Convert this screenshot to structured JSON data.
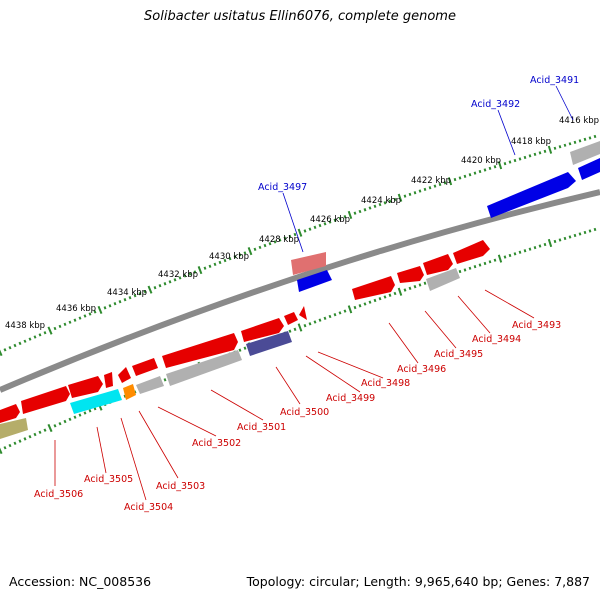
{
  "title": "Solibacter usitatus Ellin6076, complete genome",
  "footer": {
    "accession": "Accession: NC_008536",
    "stats": "Topology: circular; Length: 9,965,640 bp; Genes: 7,887"
  },
  "colors": {
    "backbone": "#8a8a8a",
    "tick_major": "#2e8b2e",
    "tick_minor": "#2e8b2e",
    "label_forward": "#0000cc",
    "label_reverse": "#cc0000",
    "red": "#e60000",
    "blue": "#0000e6",
    "grey": "#b0b0b0",
    "cyan": "#00e5f0",
    "orange": "#ff8c00",
    "navy": "#4b4b96",
    "olive": "#b5ad6a",
    "pink": "#e07070"
  },
  "scale": {
    "unit": "kbp",
    "outer_ticks": [
      "4416 kbp",
      "4418 kbp",
      "4420 kbp",
      "4422 kbp",
      "4424 kbp",
      "4426 kbp",
      "4428 kbp",
      "4430 kbp",
      "4432 kbp",
      "4434 kbp",
      "4436 kbp",
      "4438 kbp"
    ]
  },
  "feature_labels": {
    "forward": [
      "Acid_3491",
      "Acid_3492",
      "Acid_3497"
    ],
    "reverse": [
      "Acid_3493",
      "Acid_3494",
      "Acid_3495",
      "Acid_3496",
      "Acid_3498",
      "Acid_3499",
      "Acid_3500",
      "Acid_3501",
      "Acid_3502",
      "Acid_3503",
      "Acid_3504",
      "Acid_3505",
      "Acid_3506"
    ]
  }
}
